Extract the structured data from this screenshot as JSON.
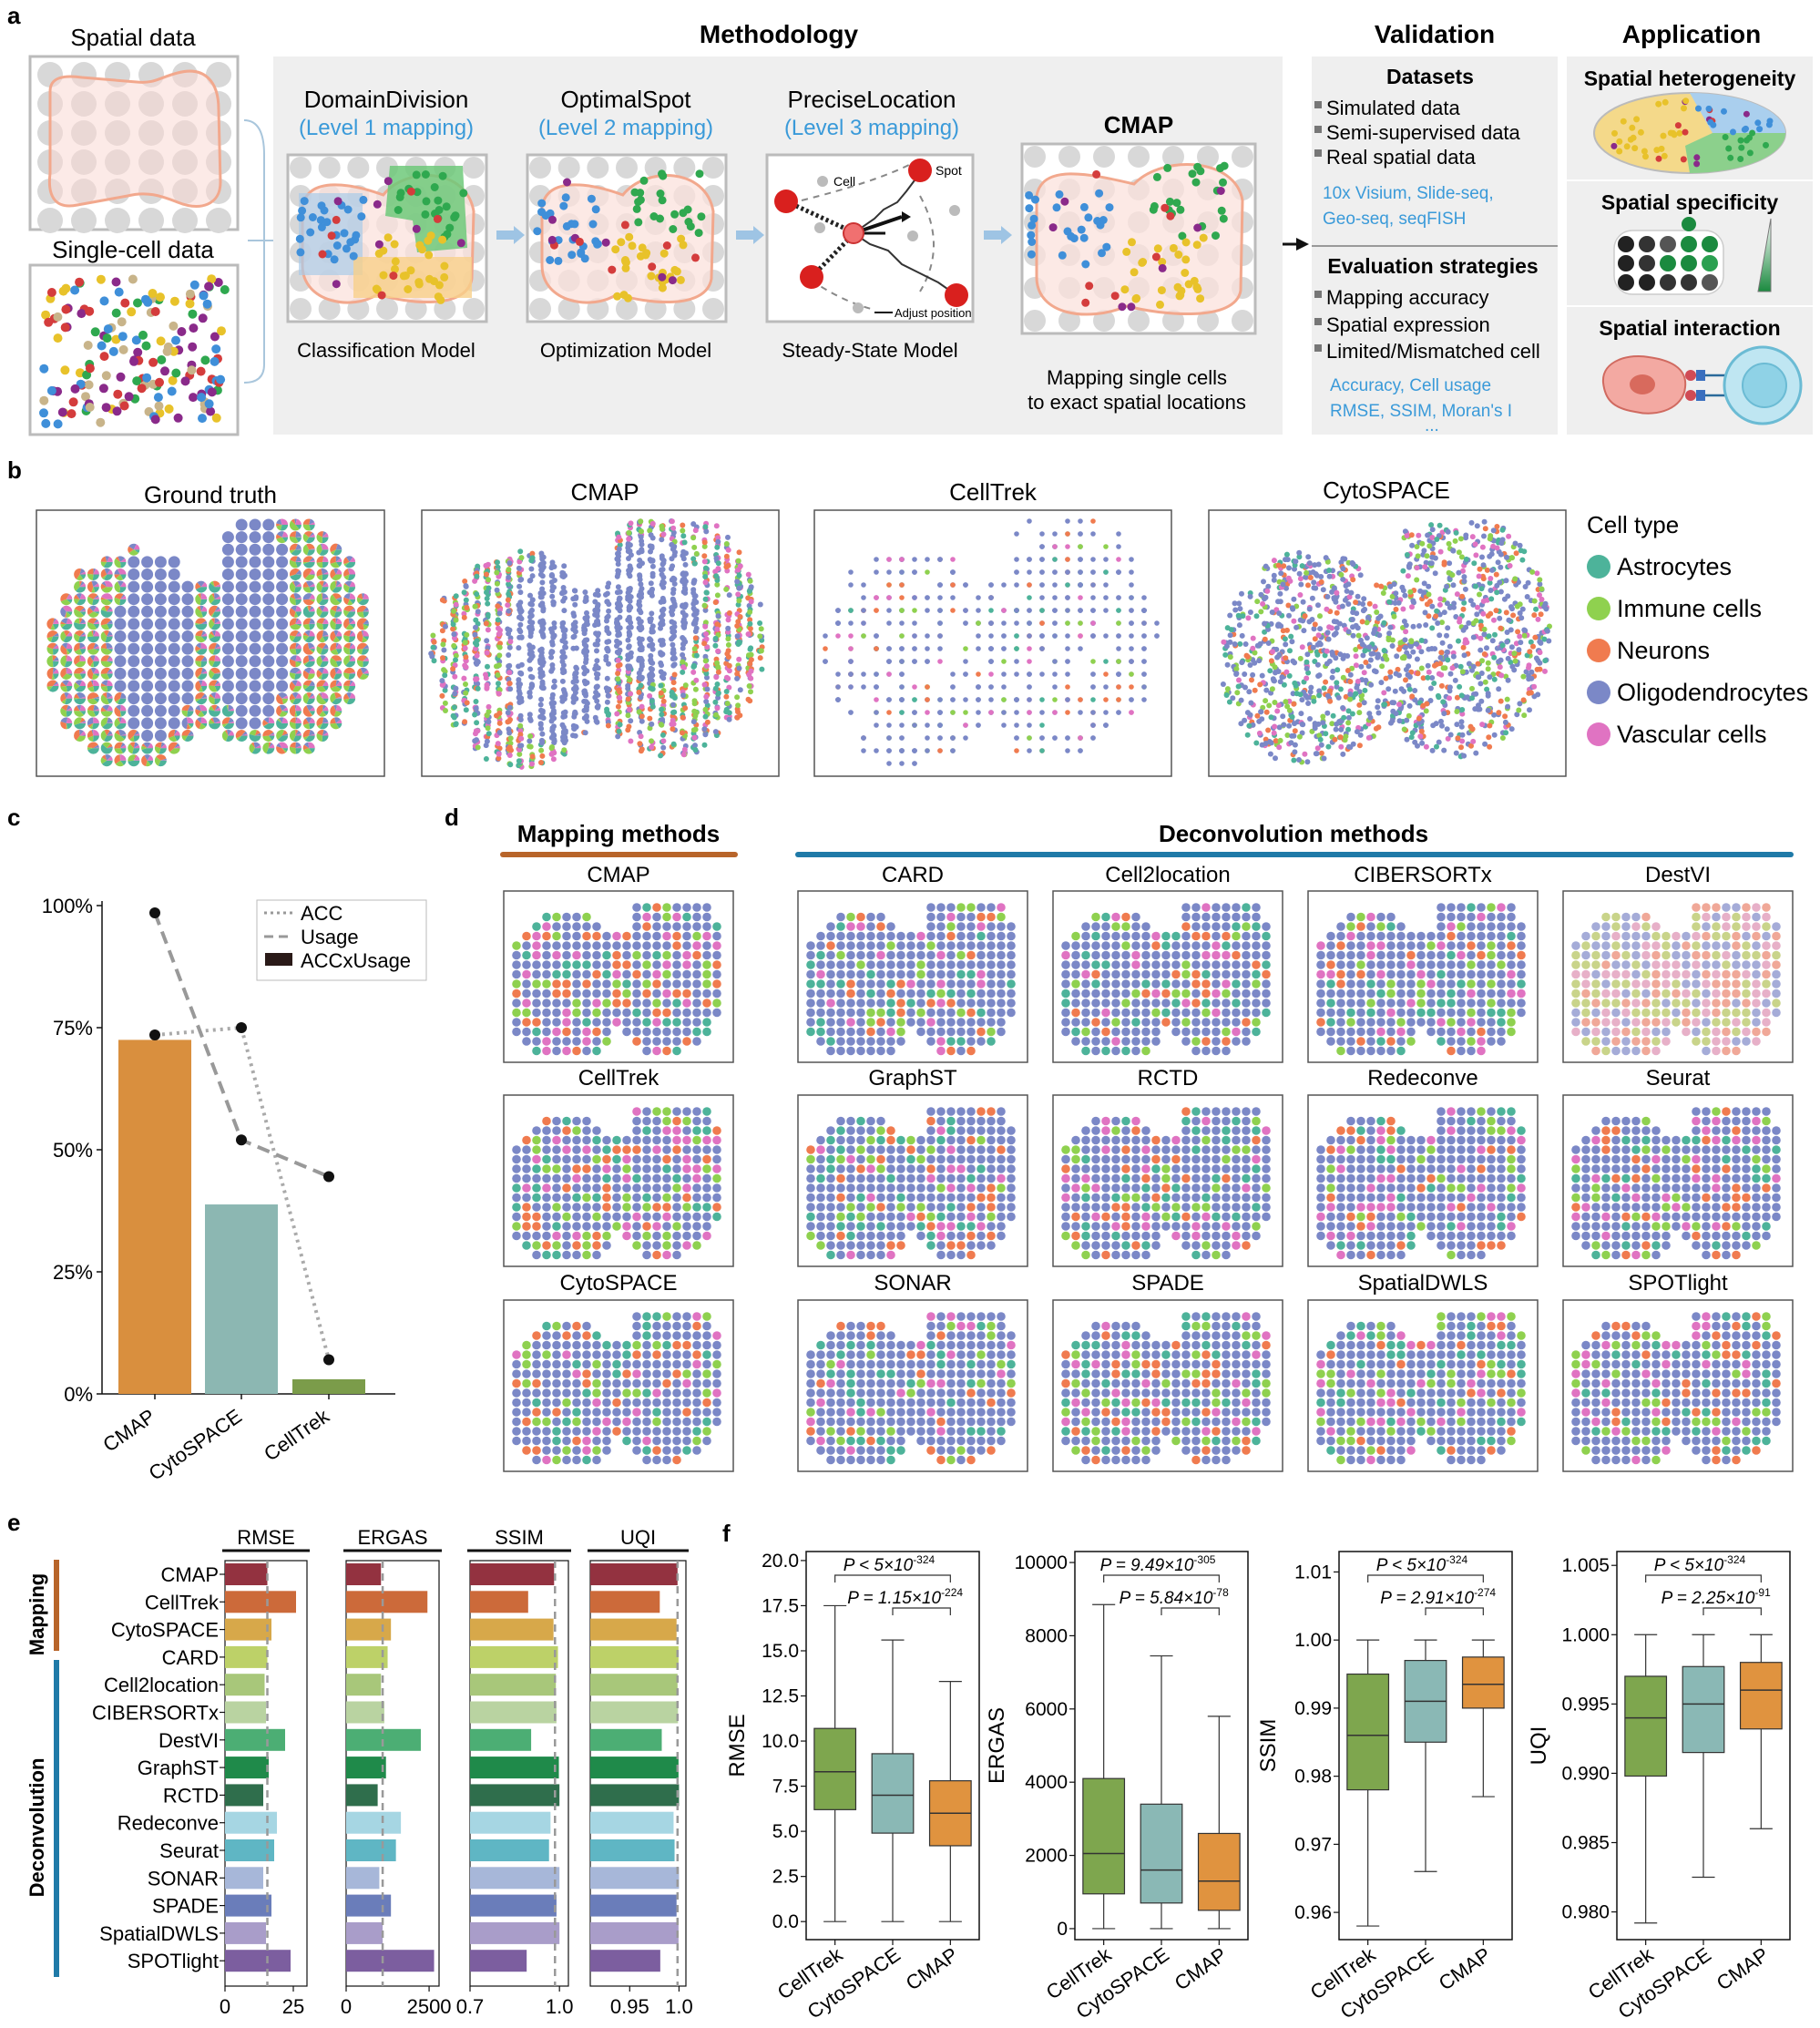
{
  "panel_labels": {
    "a": "a",
    "b": "b",
    "c": "c",
    "d": "d",
    "e": "e",
    "f": "f"
  },
  "a": {
    "spatial_label": "Spatial data",
    "singlecell_label": "Single-cell data",
    "methodology": {
      "title": "Methodology",
      "steps": [
        {
          "title": "DomainDivision",
          "level": "(Level 1 mapping)",
          "model": "Classification Model"
        },
        {
          "title": "OptimalSpot",
          "level": "(Level 2 mapping)",
          "model": "Optimization Model"
        },
        {
          "title": "PreciseLocation",
          "level": "(Level 3 mapping)",
          "model": "Steady-State Model"
        }
      ],
      "cmap_title": "CMAP",
      "cmap_caption1": "Mapping single cells",
      "cmap_caption2": "to exact spatial locations",
      "precise_labels": {
        "cell": "Cell",
        "spot": "Spot",
        "adjust": "Adjust position"
      }
    },
    "validation": {
      "title": "Validation",
      "datasets_title": "Datasets",
      "datasets": [
        "Simulated data",
        "Semi-supervised data",
        "Real spatial data"
      ],
      "dataset_tech1": "10x Visium, Slide-seq,",
      "dataset_tech2": "Geo-seq, seqFISH",
      "eval_title": "Evaluation strategies",
      "evals": [
        "Mapping accuracy",
        "Spatial expression",
        "Limited/Mismatched cell"
      ],
      "metrics1": "Accuracy, Cell usage",
      "metrics2": "RMSE, SSIM, Moran's I",
      "metrics3": "..."
    },
    "application": {
      "title": "Application",
      "items": [
        "Spatial heterogeneity",
        "Spatial specificity",
        "Spatial interaction"
      ]
    }
  },
  "b": {
    "titles": [
      "Ground truth",
      "CMAP",
      "CellTrek",
      "CytoSPACE"
    ],
    "legend_title": "Cell type",
    "cell_types": [
      {
        "name": "Astrocytes",
        "color": "#4db39a"
      },
      {
        "name": "Immune cells",
        "color": "#8fd14f"
      },
      {
        "name": "Neurons",
        "color": "#f07b4f"
      },
      {
        "name": "Oligodendrocytes",
        "color": "#7b88c7"
      },
      {
        "name": "Vascular cells",
        "color": "#e073c2"
      }
    ]
  },
  "chart_data": [
    {
      "type": "bar",
      "panel": "c",
      "categories": [
        "CMAP",
        "CytoSPACE",
        "CellTrek"
      ],
      "series": [
        {
          "name": "ACCxUsage",
          "values": [
            72.5,
            38.8,
            3.0
          ],
          "colors": [
            "#d98f3e",
            "#8cb7b2",
            "#7b9c4a"
          ]
        },
        {
          "name": "ACC",
          "values": [
            73.5,
            75.0,
            7.0
          ],
          "style": "dotted"
        },
        {
          "name": "Usage",
          "values": [
            98.5,
            52.0,
            44.5
          ],
          "style": "dashed"
        }
      ],
      "yticks": [
        "0%",
        "25%",
        "50%",
        "75%",
        "100%"
      ],
      "ylim": [
        0,
        100
      ]
    },
    {
      "type": "bar",
      "panel": "e",
      "orientation": "horizontal",
      "group_labels": [
        "Mapping",
        "Deconvolution"
      ],
      "categories": [
        "CMAP",
        "CellTrek",
        "CytoSPACE",
        "CARD",
        "Cell2location",
        "CIBERSORTx",
        "DestVI",
        "GraphST",
        "RCTD",
        "Redeconve",
        "Seurat",
        "SONAR",
        "SPADE",
        "SpatialDWLS",
        "SPOTlight"
      ],
      "colors": [
        "#933240",
        "#cc6a3a",
        "#d7a84a",
        "#bdd168",
        "#a8c77a",
        "#b9d3a1",
        "#4cae74",
        "#1f8a4a",
        "#2f6e4c",
        "#a6d6e3",
        "#5fb6c4",
        "#a7b7d9",
        "#6a7dba",
        "#a99dc9",
        "#7c5e9f"
      ],
      "metrics": [
        {
          "name": "RMSE",
          "values": [
            15.5,
            26.0,
            17.0,
            15.5,
            14.5,
            15.0,
            22.0,
            16.0,
            14.0,
            19.0,
            18.0,
            14.0,
            17.0,
            15.0,
            24.0
          ],
          "xlim": [
            0,
            30
          ],
          "ticks": [
            "0",
            "25"
          ],
          "ref": 15.5
        },
        {
          "name": "ERGAS",
          "values": [
            1050,
            2450,
            1350,
            1250,
            1050,
            1150,
            2250,
            1200,
            950,
            1650,
            1500,
            1000,
            1350,
            1100,
            2650
          ],
          "xlim": [
            0,
            2800
          ],
          "ticks": [
            "0",
            "2500"
          ],
          "ref": 1100
        },
        {
          "name": "SSIM",
          "values": [
            0.982,
            0.895,
            0.98,
            0.995,
            0.988,
            0.99,
            0.905,
            0.998,
            1.0,
            0.97,
            0.965,
            1.0,
            0.99,
            1.0,
            0.89
          ],
          "xlim": [
            0.7,
            1.03
          ],
          "ticks": [
            "0.7",
            "1.0"
          ],
          "ref": 0.985
        },
        {
          "name": "UQI",
          "values": [
            0.9985,
            0.9805,
            0.9975,
            0.9995,
            0.9985,
            0.999,
            0.9825,
            0.9995,
            1.0,
            0.9945,
            0.9955,
            1.0,
            0.9975,
            0.9995,
            0.981
          ],
          "xlim": [
            0.91,
            1.007
          ],
          "ticks": [
            "0.95",
            "1.0"
          ],
          "ref": 0.9985
        }
      ]
    },
    {
      "type": "box",
      "panel": "f",
      "categories": [
        "CellTrek",
        "CytoSPACE",
        "CMAP"
      ],
      "colors": [
        "#7ea64e",
        "#8ab8b5",
        "#e0933f"
      ],
      "plots": [
        {
          "ylabel": "RMSE",
          "ylim": [
            -1,
            20.5
          ],
          "yticks": [
            "0.0",
            "2.5",
            "5.0",
            "7.5",
            "10.0",
            "12.5",
            "15.0",
            "17.5",
            "20.0"
          ],
          "boxes": [
            [
              0,
              6.2,
              8.3,
              10.7,
              17.5
            ],
            [
              0,
              4.9,
              7.0,
              9.3,
              15.6
            ],
            [
              0,
              4.2,
              6.0,
              7.8,
              13.3
            ]
          ],
          "p1": "P < 5×10",
          "p1exp": "-324",
          "p2": "P = 1.15×10",
          "p2exp": "-224"
        },
        {
          "ylabel": "ERGAS",
          "ylim": [
            -300,
            10300
          ],
          "yticks": [
            "0",
            "2000",
            "4000",
            "6000",
            "8000",
            "10000"
          ],
          "boxes": [
            [
              0,
              950,
              2050,
              4100,
              8850
            ],
            [
              0,
              700,
              1600,
              3400,
              7450
            ],
            [
              0,
              500,
              1300,
              2600,
              5800
            ]
          ],
          "p1": "P = 9.49×10",
          "p1exp": "-305",
          "p2": "P = 5.84×10",
          "p2exp": "-78"
        },
        {
          "ylabel": "SSIM",
          "ylim": [
            0.956,
            1.013
          ],
          "yticks": [
            "0.96",
            "0.97",
            "0.98",
            "0.99",
            "1.00",
            "1.01"
          ],
          "boxes": [
            [
              0.958,
              0.978,
              0.986,
              0.995,
              1.0
            ],
            [
              0.966,
              0.985,
              0.991,
              0.997,
              1.0
            ],
            [
              0.977,
              0.99,
              0.9935,
              0.9975,
              1.0
            ]
          ],
          "p1": "P < 5×10",
          "p1exp": "-324",
          "p2": "P = 2.91×10",
          "p2exp": "-274"
        },
        {
          "ylabel": "UQI",
          "ylim": [
            0.978,
            1.006
          ],
          "yticks": [
            "0.980",
            "0.985",
            "0.990",
            "0.995",
            "1.000",
            "1.005"
          ],
          "boxes": [
            [
              0.9792,
              0.9898,
              0.994,
              0.997,
              1.0
            ],
            [
              0.9825,
              0.9915,
              0.995,
              0.9977,
              1.0
            ],
            [
              0.986,
              0.9932,
              0.996,
              0.998,
              1.0
            ]
          ],
          "p1": "P < 5×10",
          "p1exp": "-324",
          "p2": "P = 2.25×10",
          "p2exp": "-91"
        }
      ]
    }
  ],
  "d": {
    "mapping_title": "Mapping methods",
    "deconv_title": "Deconvolution methods",
    "mapping_methods": [
      "CMAP",
      "CellTrek",
      "CytoSPACE"
    ],
    "deconv_methods": [
      "CARD",
      "Cell2location",
      "CIBERSORTx",
      "DestVI",
      "GraphST",
      "RCTD",
      "Redeconve",
      "Seurat",
      "SONAR",
      "SPADE",
      "SpatialDWLS",
      "SPOTlight"
    ]
  }
}
